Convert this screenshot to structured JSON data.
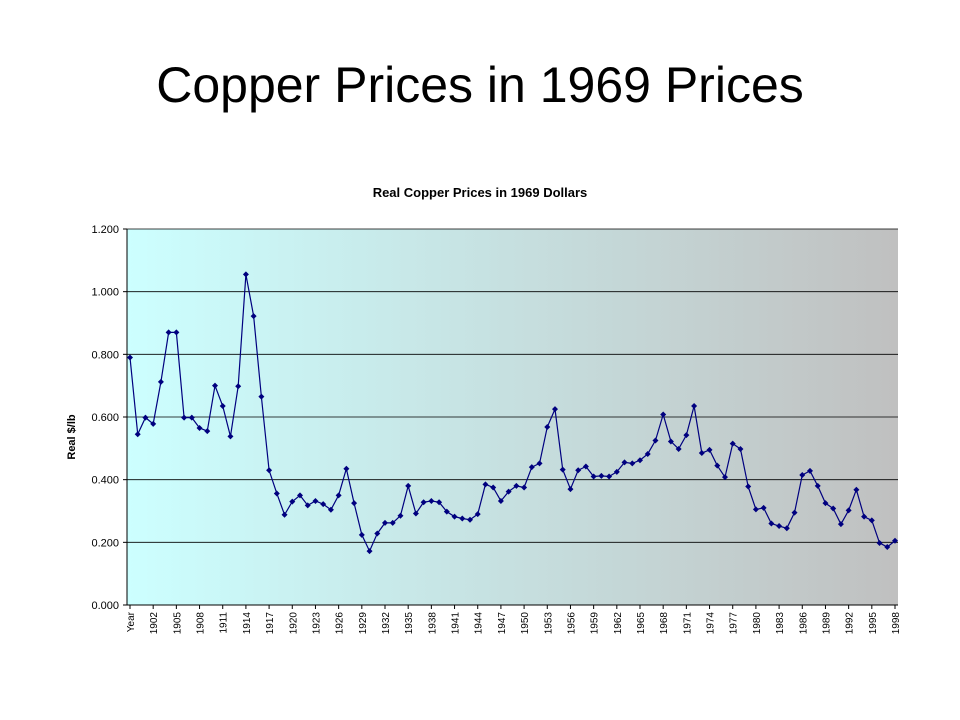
{
  "slide": {
    "title": "Copper Prices in 1969 Prices"
  },
  "colors": {
    "line": "#00007f",
    "grid": "#000000",
    "plot_bg_left": "#ccffff",
    "plot_bg_right": "#c0c0c0"
  },
  "chart_data": {
    "type": "line",
    "title": "Real Copper Prices in 1969 Dollars",
    "xlabel": "",
    "ylabel": "Real $/lb",
    "ylim": [
      0,
      1.2
    ],
    "yticks": [
      "0.000",
      "0.200",
      "0.400",
      "0.600",
      "0.800",
      "1.000",
      "1.200"
    ],
    "grid": true,
    "legend": "none",
    "x_tick_labels": [
      "Year",
      "1902",
      "1905",
      "1908",
      "1911",
      "1914",
      "1917",
      "1920",
      "1923",
      "1926",
      "1929",
      "1932",
      "1935",
      "1938",
      "1941",
      "1944",
      "1947",
      "1950",
      "1953",
      "1956",
      "1959",
      "1962",
      "1965",
      "1968",
      "1971",
      "1974",
      "1977",
      "1980",
      "1983",
      "1986",
      "1989",
      "1992",
      "1995",
      "1998"
    ],
    "x_tick_every": 3,
    "series": [
      {
        "values": [
          0.79,
          0.545,
          0.598,
          0.578,
          0.712,
          0.87,
          0.87,
          0.598,
          0.598,
          0.565,
          0.555,
          0.7,
          0.635,
          0.538,
          0.698,
          1.055,
          0.922,
          0.665,
          0.43,
          0.356,
          0.288,
          0.33,
          0.35,
          0.318,
          0.332,
          0.322,
          0.304,
          0.35,
          0.435,
          0.325,
          0.224,
          0.172,
          0.228,
          0.262,
          0.262,
          0.285,
          0.38,
          0.292,
          0.328,
          0.332,
          0.328,
          0.298,
          0.282,
          0.276,
          0.272,
          0.29,
          0.385,
          0.375,
          0.332,
          0.362,
          0.38,
          0.375,
          0.44,
          0.452,
          0.568,
          0.625,
          0.432,
          0.37,
          0.43,
          0.442,
          0.41,
          0.412,
          0.41,
          0.425,
          0.455,
          0.452,
          0.462,
          0.482,
          0.525,
          0.608,
          0.522,
          0.498,
          0.542,
          0.635,
          0.485,
          0.495,
          0.445,
          0.408,
          0.515,
          0.498,
          0.378,
          0.305,
          0.31,
          0.26,
          0.252,
          0.245,
          0.295,
          0.415,
          0.428,
          0.38,
          0.325,
          0.308,
          0.258,
          0.302,
          0.368,
          0.282,
          0.27,
          0.198,
          0.185,
          0.205
        ]
      }
    ]
  }
}
